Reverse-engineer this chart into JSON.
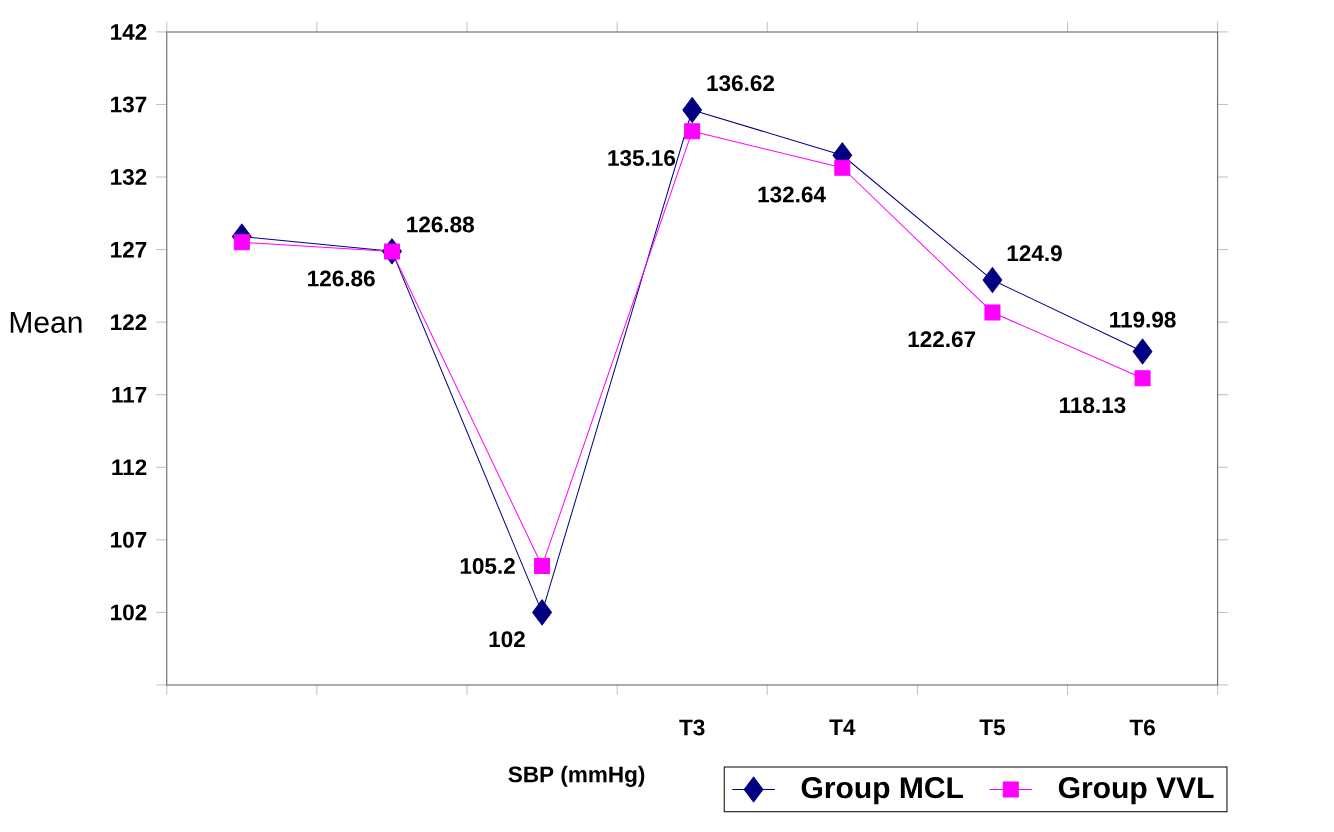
{
  "chart_data": {
    "type": "line",
    "xlabel": "SBP (mmHg)",
    "ylabel": "Mean",
    "categories": [
      null,
      null,
      null,
      "T3",
      "T4",
      "T5",
      "T6"
    ],
    "ylim": [
      97,
      142
    ],
    "yticks": [
      {
        "value": 97,
        "label": null
      },
      102,
      107,
      112,
      117,
      122,
      127,
      132,
      137,
      142
    ],
    "legend": "bottom right",
    "grid": false,
    "series": [
      {
        "name": "Group MCL",
        "color": "#000080",
        "marker": "diamond",
        "values": [
          127.9,
          126.88,
          102,
          136.62,
          133.5,
          124.9,
          119.98
        ],
        "value_labels": [
          null,
          "126.88",
          "102",
          "136.62",
          null,
          "124.9",
          "119.98"
        ]
      },
      {
        "name": "Group VVL",
        "color": "#ff00ff",
        "marker": "square",
        "values": [
          127.5,
          126.86,
          105.2,
          135.16,
          132.64,
          122.67,
          118.13
        ],
        "value_labels": [
          null,
          "126.86",
          "105.2",
          "135.16",
          "132.64",
          "122.67",
          "118.13"
        ]
      }
    ]
  }
}
